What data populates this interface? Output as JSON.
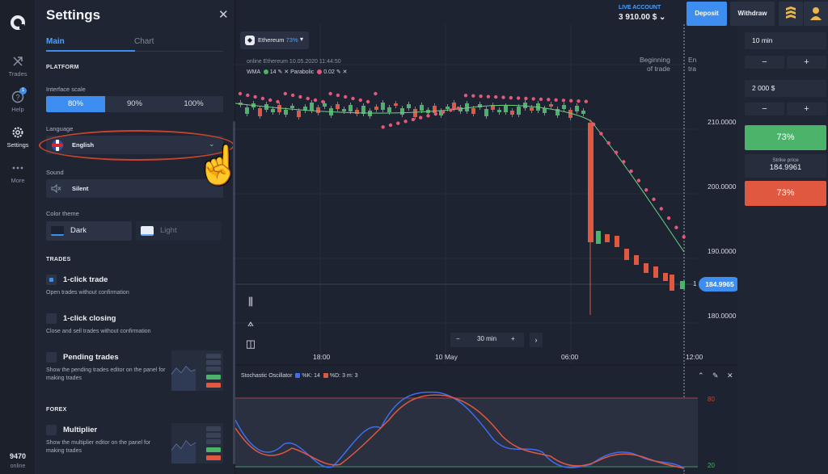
{
  "rail": {
    "items": [
      {
        "label": "Trades",
        "icon": "trades-icon"
      },
      {
        "label": "Help",
        "icon": "help-icon",
        "badge": "1"
      },
      {
        "label": "Settings",
        "icon": "gear-icon"
      },
      {
        "label": "More",
        "icon": "more-icon"
      }
    ],
    "bottom_number": "9470",
    "bottom_status": "online"
  },
  "settings": {
    "title": "Settings",
    "close": "✕",
    "tabs": [
      "Main",
      "Chart"
    ],
    "platform_header": "PLATFORM",
    "interface_scale_label": "Interface scale",
    "scale_options": [
      "80%",
      "90%",
      "100%"
    ],
    "language_label": "Language",
    "language_value": "English",
    "sound_label": "Sound",
    "sound_value": "Silent",
    "color_theme_label": "Color theme",
    "themes": [
      "Dark",
      "Light"
    ],
    "trades_header": "TRADES",
    "options": [
      {
        "title": "1-click trade",
        "desc": "Open trades without confirmation",
        "checked": true
      },
      {
        "title": "1-click closing",
        "desc": "Close and sell trades without confirmation",
        "checked": false
      },
      {
        "title": "Pending trades",
        "desc": "Show the pending trades editor on the panel for making trades",
        "checked": false
      }
    ],
    "forex_header": "FOREX",
    "multiplier": {
      "title": "Multiplier",
      "desc": "Show the multiplier editor on the panel for making trades",
      "checked": false
    }
  },
  "chart": {
    "asset_name": "Ethereum",
    "asset_pct": "73%",
    "status_line": "online Ethereum  10.05.2020 11:44:50",
    "indicators": {
      "wma": "WMA",
      "wma_period": "14",
      "parabolic": "Parabolic",
      "parabolic_step": "0.02"
    },
    "beginning_label": [
      "Beginning",
      "of trade"
    ],
    "end_label": [
      "En",
      "tra"
    ],
    "price_ticks": [
      "210.0000",
      "200.0000",
      "190.0000",
      "180.0000"
    ],
    "current_price": "184.9965",
    "current_marker": "1",
    "time_ticks": [
      "18:00",
      "10 May",
      "06:00",
      "12:00"
    ],
    "zoom_value": "30 min",
    "zoom_minus": "−",
    "zoom_plus": "+",
    "zoom_next": "›",
    "oscillator": {
      "name": "Stochastic Oscillator",
      "k_label": "%K: 14",
      "d_label": "%D: 3",
      "m_label": "m: 3",
      "upper": "80",
      "lower": "20"
    },
    "colors": {
      "up": "#4cb36a",
      "down": "#e0583f",
      "parabolic": "#e4587a",
      "wma": "#6fcf7f",
      "k_line": "#3d6ef0",
      "d_line": "#e0583f"
    }
  },
  "account": {
    "label": "LIVE ACCOUNT",
    "balance": "3 910.00 $"
  },
  "header_buttons": {
    "deposit": "Deposit",
    "withdraw": "Withdraw"
  },
  "trade_panel": {
    "time": "10 min",
    "amount": "2 000  $",
    "minus": "−",
    "plus": "+",
    "up_pct": "73%",
    "strike_label": "Strike price",
    "strike_value": "184.9961",
    "down_pct": "73%"
  }
}
